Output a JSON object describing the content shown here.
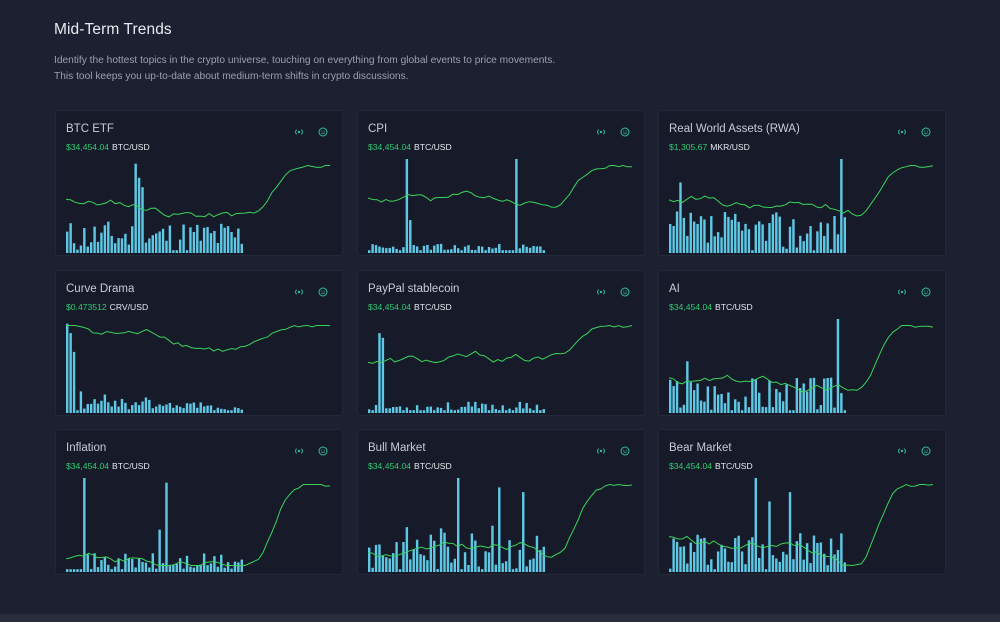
{
  "page": {
    "title": "Mid-Term Trends",
    "description": "Identify the hottest topics in the crypto universe, touching on everything from global events to price movements. This tool keeps you up-to-date about medium-term shifts in crypto discussions."
  },
  "colors": {
    "bar": "#5ec8e5",
    "line": "#3ad45a",
    "price": "#2ecc71"
  },
  "icons": {
    "radio": "radio-broadcast-icon",
    "emoji": "smiley-face-icon"
  },
  "cards": [
    {
      "title": "BTC ETF",
      "price": "$34,454.04",
      "pair": "BTC/USD"
    },
    {
      "title": "CPI",
      "price": "$34,454.04",
      "pair": "BTC/USD"
    },
    {
      "title": "Real World Assets (RWA)",
      "price": "$1,305.67",
      "pair": "MKR/USD"
    },
    {
      "title": "Curve Drama",
      "price": "$0.473512",
      "pair": "CRV/USD"
    },
    {
      "title": "PayPal stablecoin",
      "price": "$34,454.04",
      "pair": "BTC/USD"
    },
    {
      "title": "AI",
      "price": "$34,454.04",
      "pair": "BTC/USD"
    },
    {
      "title": "Inflation",
      "price": "$34,454.04",
      "pair": "BTC/USD"
    },
    {
      "title": "Bull Market",
      "price": "$34,454.04",
      "pair": "BTC/USD"
    },
    {
      "title": "Bear Market",
      "price": "$34,454.04",
      "pair": "BTC/USD"
    }
  ]
}
